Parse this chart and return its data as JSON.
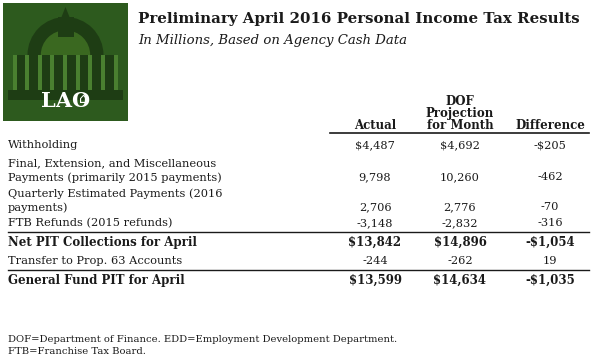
{
  "title": "Preliminary April 2016 Personal Income Tax Results",
  "subtitle": "In Millions, Based on Agency Cash Data",
  "rows": [
    {
      "label1": "Withholding",
      "label2": "",
      "actual": "$4,487",
      "dof": "$4,692",
      "diff": "-$205",
      "bold": false,
      "line_above": false
    },
    {
      "label1": "Final, Extension, and Miscellaneous",
      "label2": "Payments (primarily 2015 payments)",
      "actual": "9,798",
      "dof": "10,260",
      "diff": "-462",
      "bold": false,
      "line_above": false
    },
    {
      "label1": "Quarterly Estimated Payments (2016",
      "label2": "payments)",
      "actual": "2,706",
      "dof": "2,776",
      "diff": "-70",
      "bold": false,
      "line_above": false
    },
    {
      "label1": "FTB Refunds (2015 refunds)",
      "label2": "",
      "actual": "-3,148",
      "dof": "-2,832",
      "diff": "-316",
      "bold": false,
      "line_above": false
    },
    {
      "label1": "Net PIT Collections for April",
      "label2": "",
      "actual": "$13,842",
      "dof": "$14,896",
      "diff": "-$1,054",
      "bold": true,
      "line_above": true
    },
    {
      "label1": "Transfer to Prop. 63 Accounts",
      "label2": "",
      "actual": "-244",
      "dof": "-262",
      "diff": "19",
      "bold": false,
      "line_above": false
    },
    {
      "label1": "General Fund PIT for April",
      "label2": "",
      "actual": "$13,599",
      "dof": "$14,634",
      "diff": "-$1,035",
      "bold": true,
      "line_above": true
    }
  ],
  "footnote1": "DOF=Department of Finance. EDD=Employment Development Department.",
  "footnote2": "FTB=Franchise Tax Board.",
  "text_color": "#1a1a1a",
  "line_color": "#1a1a1a",
  "bg_color": "#ffffff",
  "logo_dark": "#2d5a1e",
  "logo_mid": "#3a7025",
  "logo_light": "#4a8a30",
  "logo_dome": "#1e3d14"
}
